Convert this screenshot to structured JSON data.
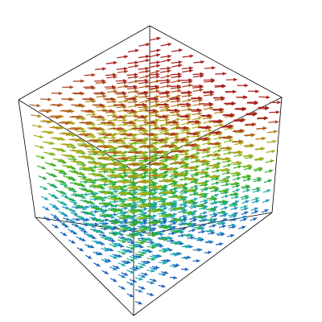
{
  "scene": {
    "type": "3d-vector-field",
    "grid_per_axis": 12,
    "bounding_box": "wireframe-cube",
    "color_map": [
      "#1a2a9c",
      "#1f78c8",
      "#1fb2b2",
      "#22a845",
      "#48b21a",
      "#9fb51f",
      "#b4a31c",
      "#b25a1c",
      "#a81c1c"
    ],
    "box_line_color": "#000000",
    "background": "#ffffff"
  }
}
